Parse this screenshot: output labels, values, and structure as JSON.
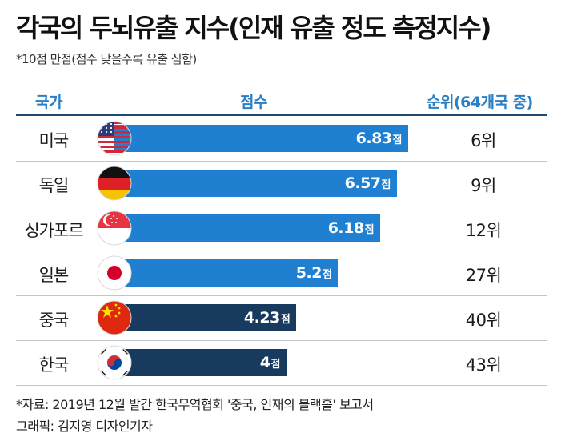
{
  "title": "각국의 두뇌유출 지수(인재 유출 정도 측정지수)",
  "subtitle": "*10점 만점(점수 낮을수록 유출 심함)",
  "headers": {
    "country": "국가",
    "score": "점수",
    "rank": "순위(64개국 중)"
  },
  "source": "*자료: 2019년 12월 발간 한국무역협회 '중국, 인재의 블랙홀' 보고서",
  "credit": "그래픽: 김지영 디자인기자",
  "colors": {
    "blue_bar": "#1f7fd0",
    "navy_bar": "#173a5e",
    "header_text": "#2b7fc4"
  },
  "chart_data": {
    "type": "bar",
    "orientation": "horizontal",
    "title": "각국의 두뇌유출 지수(인재 유출 정도 측정지수)",
    "unit": "점",
    "xlim": [
      0,
      10
    ],
    "categories": [
      "미국",
      "독일",
      "싱가포르",
      "일본",
      "중국",
      "한국"
    ],
    "values": [
      6.83,
      6.57,
      6.18,
      5.2,
      4.23,
      4
    ],
    "value_labels": [
      "6.83",
      "6.57",
      "6.18",
      "5.2",
      "4.23",
      "4"
    ],
    "ranks": [
      "6위",
      "9위",
      "12위",
      "27위",
      "40위",
      "43위"
    ],
    "flags": [
      "usa-flag-icon",
      "germany-flag-icon",
      "singapore-flag-icon",
      "japan-flag-icon",
      "china-flag-icon",
      "korea-flag-icon"
    ],
    "bar_colors": [
      "#1f7fd0",
      "#1f7fd0",
      "#1f7fd0",
      "#1f7fd0",
      "#173a5e",
      "#173a5e"
    ]
  }
}
